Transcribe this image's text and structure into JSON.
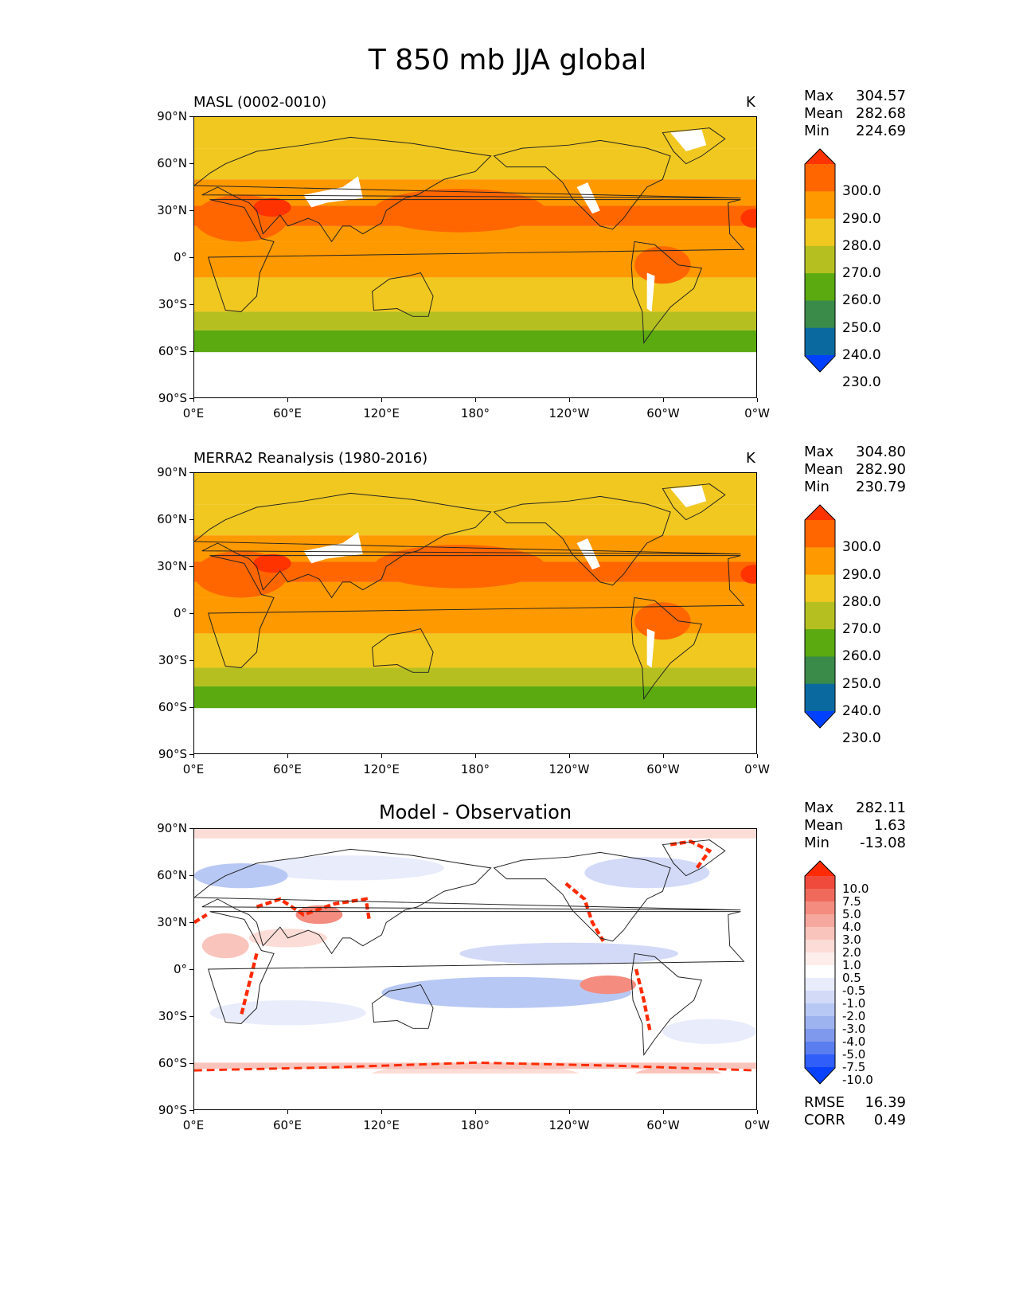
{
  "figure": {
    "title": "T 850 mb JJA global"
  },
  "axes": {
    "lat_ticks": [
      "90°N",
      "60°N",
      "30°N",
      "0°",
      "30°S",
      "60°S",
      "90°S"
    ],
    "lon_ticks": [
      "0°E",
      "60°E",
      "120°E",
      "180°",
      "120°W",
      "60°W",
      "0°W"
    ]
  },
  "panels": [
    {
      "left_title": "MASL (0002-0010)",
      "center_title": "",
      "units": "K",
      "stats": [
        [
          "Max",
          "304.57"
        ],
        [
          "Mean",
          "282.68"
        ],
        [
          "Min",
          "224.69"
        ]
      ]
    },
    {
      "left_title": "MERRA2 Reanalysis (1980-2016)",
      "center_title": "",
      "units": "K",
      "stats": [
        [
          "Max",
          "304.80"
        ],
        [
          "Mean",
          "282.90"
        ],
        [
          "Min",
          "230.79"
        ]
      ]
    },
    {
      "left_title": "",
      "center_title": "Model - Observation",
      "units": "",
      "stats": [
        [
          "Max",
          "282.11"
        ],
        [
          "Mean",
          "1.63"
        ],
        [
          "Min",
          "-13.08"
        ]
      ],
      "footer_stats": [
        [
          "RMSE",
          "16.39"
        ],
        [
          "CORR",
          "0.49"
        ]
      ]
    }
  ],
  "colorbars": {
    "absolute": {
      "labels": [
        "300.0",
        "290.0",
        "280.0",
        "270.0",
        "260.0",
        "250.0",
        "240.0",
        "230.0"
      ],
      "colors": [
        "#ff3300",
        "#ff6600",
        "#ff9900",
        "#f0c820",
        "#b5c020",
        "#5aaa10",
        "#3a8a4a",
        "#0a6aa0",
        "#0040ff"
      ]
    },
    "difference": {
      "labels": [
        "10.0",
        "7.5",
        "5.0",
        "4.0",
        "3.0",
        "2.0",
        "1.0",
        "0.5",
        "-0.5",
        "-1.0",
        "-2.0",
        "-3.0",
        "-4.0",
        "-5.0",
        "-7.5",
        "-10.0"
      ],
      "colors": [
        "#ff2a00",
        "#ef4a3c",
        "#f06a5c",
        "#f48c80",
        "#f7a89e",
        "#f9c4bc",
        "#fcdcd6",
        "#feeeeb",
        "#ffffff",
        "#e8ecfb",
        "#d2daf8",
        "#b8c8f4",
        "#9db3f0",
        "#7f99ec",
        "#5a7ef0",
        "#2f5ef8",
        "#0a40ff"
      ]
    }
  },
  "legend_note": ""
}
